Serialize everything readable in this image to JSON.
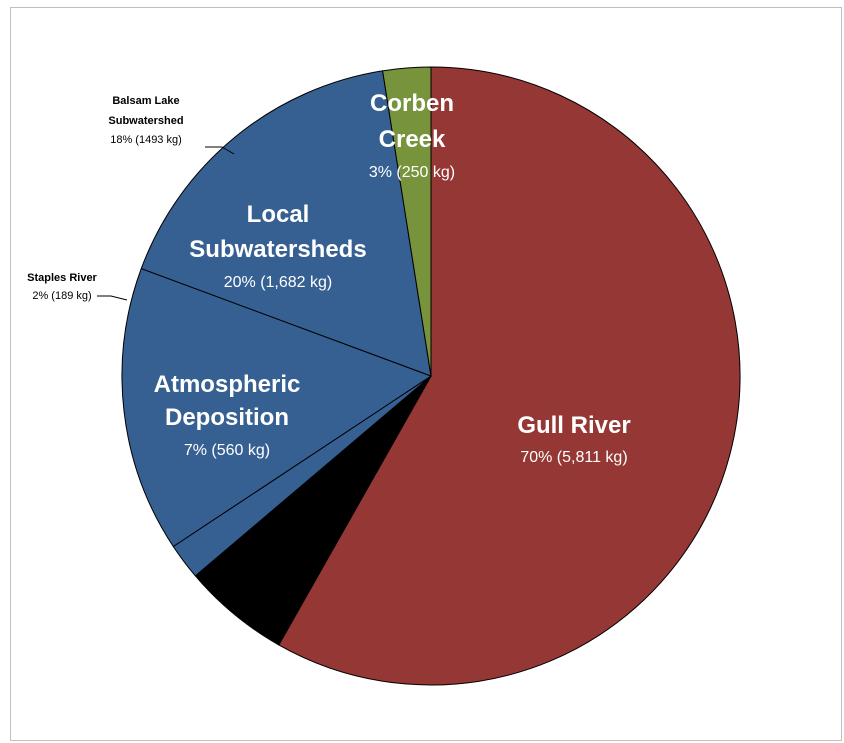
{
  "chart_data": {
    "type": "pie",
    "slices": [
      {
        "label": "Gull River",
        "value": 5811,
        "display": "70% (5,811 kg)",
        "color": "#953735"
      },
      {
        "label": "Atmospheric Deposition",
        "value": 560,
        "display": "7% (560 kg)",
        "color": "#000000"
      },
      {
        "label": "Staples River",
        "value": 189,
        "display": "2% (189 kg)",
        "color": "#376092"
      },
      {
        "label": "Balsam Lake Subwatershed",
        "value": 1493,
        "display": "18% (1493  kg)",
        "color": "#376092"
      },
      {
        "label": "Local Subwatersheds",
        "value": 1682,
        "display": "20% (1,682 kg)",
        "color": "#376092"
      },
      {
        "label": "Corben Creek",
        "value": 250,
        "display": "3% (250 kg)",
        "color": "#77933c"
      }
    ],
    "legend": "none"
  },
  "labels": {
    "gull": {
      "line1": "Gull River",
      "value": "70% (5,811 kg)"
    },
    "atmos": {
      "line1": "Atmospheric",
      "line2": "Deposition",
      "value": "7% (560 kg)"
    },
    "local": {
      "line1": "Local",
      "line2": "Subwatersheds",
      "value": "20% (1,682 kg)"
    },
    "corben": {
      "line1": "Corben",
      "line2": "Creek",
      "value": "3% (250 kg)"
    },
    "staples": {
      "line1": "Staples River",
      "value": "2% (189 kg)"
    },
    "balsam": {
      "line1": "Balsam Lake",
      "line2": "Subwatershed",
      "value": "18% (1493  kg)"
    }
  }
}
